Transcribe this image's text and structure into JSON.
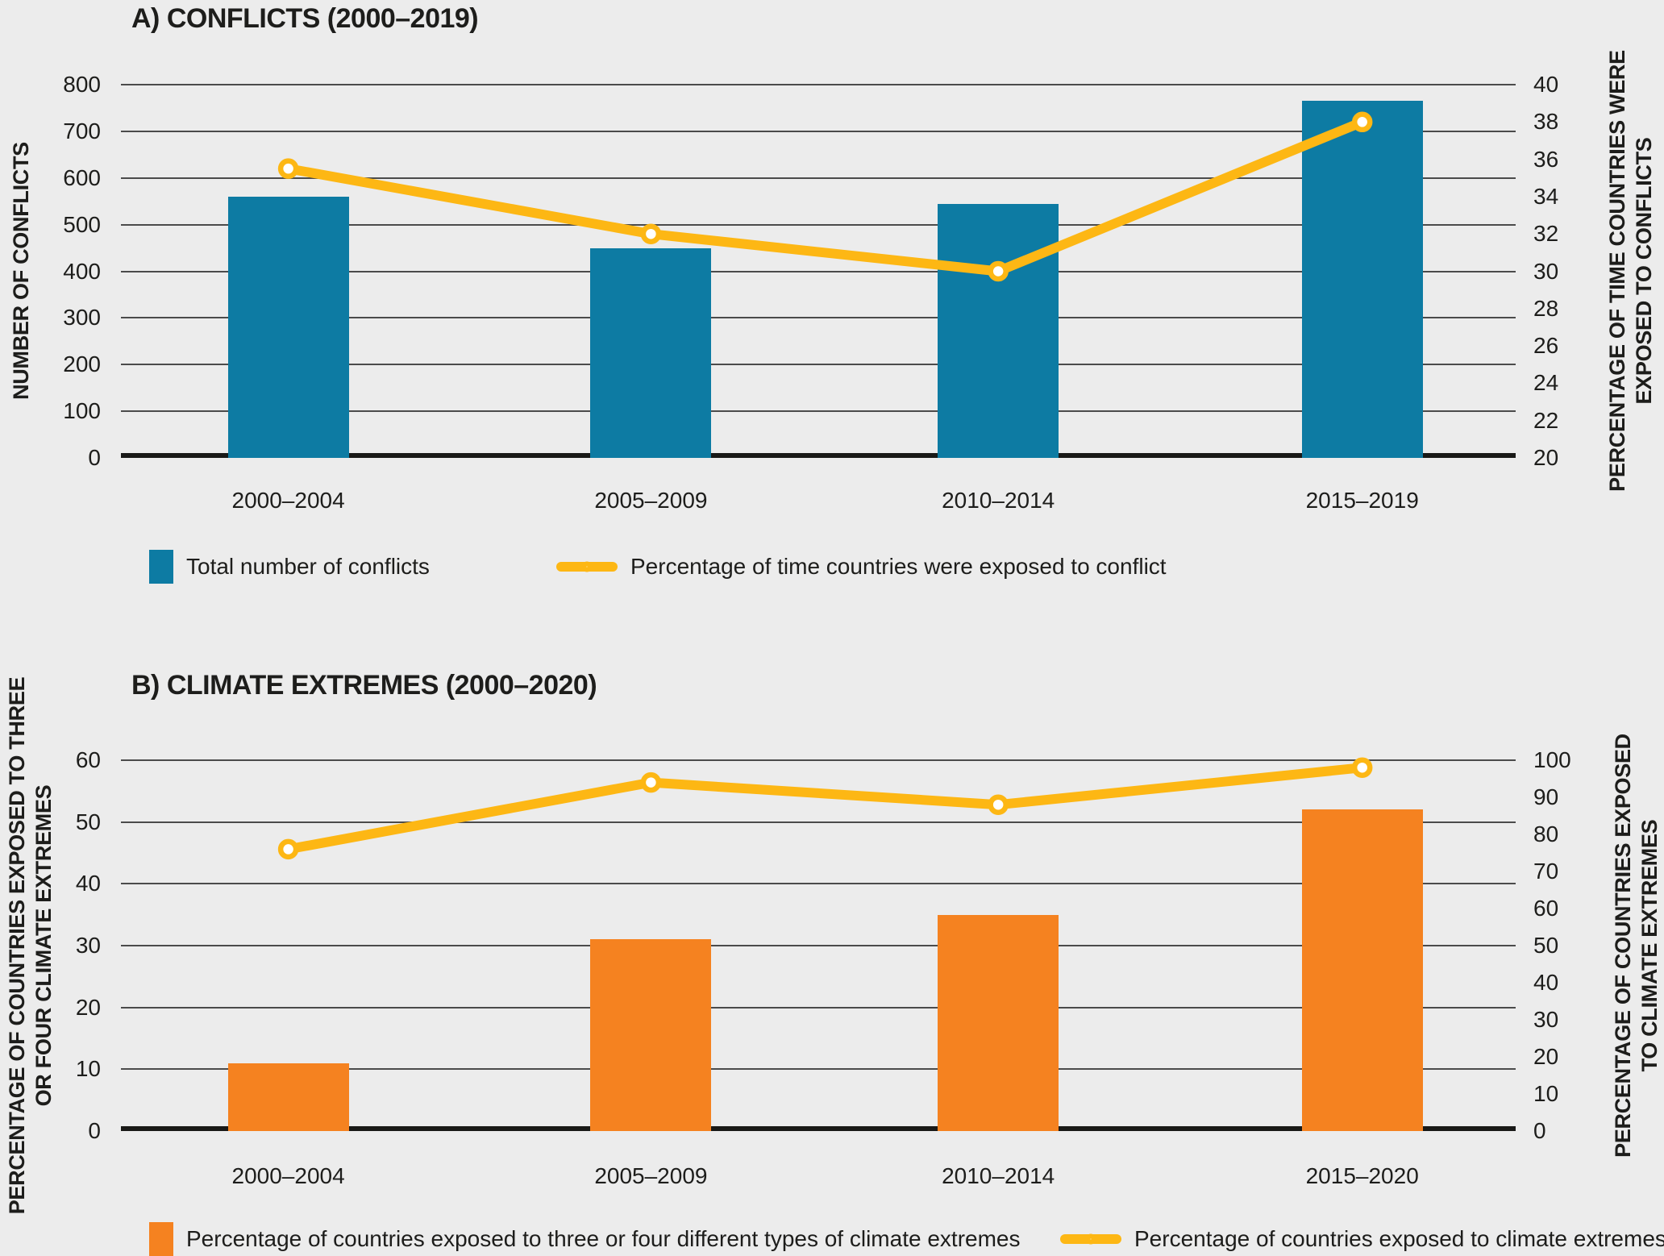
{
  "style": {
    "background": "#ececec",
    "text_color": "#1d1d1b",
    "grid_color": "#4b4b4b",
    "axis_color": "#191917"
  },
  "chart_data": [
    {
      "id": "conflicts",
      "type": "bar+line",
      "title": "A) CONFLICTS (2000–2019)",
      "categories": [
        "2000–2004",
        "2005–2009",
        "2010–2014",
        "2015–2019"
      ],
      "grid": true,
      "legend_position": "bottom",
      "left_axis": {
        "label": "NUMBER OF CONFLICTS",
        "min": 0,
        "max": 800,
        "step": 100,
        "ticks": [
          0,
          100,
          200,
          300,
          400,
          500,
          600,
          700,
          800
        ]
      },
      "right_axis": {
        "label": "PERCENTAGE OF TIME COUNTRIES WERE EXPOSED TO CONFLICTS",
        "label_lines": [
          "PERCENTAGE OF TIME COUNTRIES WERE",
          "EXPOSED TO CONFLICTS"
        ],
        "min": 20,
        "max": 40,
        "step": 2,
        "ticks": [
          20,
          22,
          24,
          26,
          28,
          30,
          32,
          34,
          36,
          38,
          40
        ]
      },
      "series": [
        {
          "name": "Total number of conflicts",
          "type": "bar",
          "axis": "left",
          "color": "#0d7ba3",
          "values": [
            560,
            450,
            545,
            765
          ]
        },
        {
          "name": "Percentage of time countries were exposed to conflict",
          "type": "line",
          "axis": "right",
          "color": "#fdb714",
          "marker": "circle-open",
          "values": [
            35.5,
            32,
            30,
            38
          ]
        }
      ]
    },
    {
      "id": "climate-extremes",
      "type": "bar+line",
      "title": "B) CLIMATE EXTREMES (2000–2020)",
      "categories": [
        "2000–2004",
        "2005–2009",
        "2010–2014",
        "2015–2020"
      ],
      "grid": true,
      "legend_position": "bottom",
      "left_axis": {
        "label": "PERCENTAGE OF COUNTRIES EXPOSED TO THREE OR FOUR CLIMATE EXTREMES",
        "label_lines": [
          "PERCENTAGE OF COUNTRIES EXPOSED TO THREE",
          "OR FOUR CLIMATE EXTREMES"
        ],
        "min": 0,
        "max": 60,
        "step": 10,
        "ticks": [
          0,
          10,
          20,
          30,
          40,
          50,
          60
        ]
      },
      "right_axis": {
        "label": "PERCENTAGE OF COUNTRIES EXPOSED TO CLIMATE EXTREMES",
        "label_lines": [
          "PERCENTAGE OF COUNTRIES EXPOSED",
          "TO CLIMATE EXTREMES"
        ],
        "min": 0,
        "max": 100,
        "step": 10,
        "ticks": [
          0,
          10,
          20,
          30,
          40,
          50,
          60,
          70,
          80,
          90,
          100
        ]
      },
      "series": [
        {
          "name": "Percentage of countries exposed to three or four different types of climate extremes",
          "type": "bar",
          "axis": "left",
          "color": "#f58220",
          "values": [
            11,
            31,
            35,
            52
          ]
        },
        {
          "name": "Percentage of countries exposed to climate extremes",
          "type": "line",
          "axis": "right",
          "color": "#fdb714",
          "marker": "circle-open",
          "values": [
            76,
            94,
            88,
            98
          ]
        }
      ]
    }
  ]
}
